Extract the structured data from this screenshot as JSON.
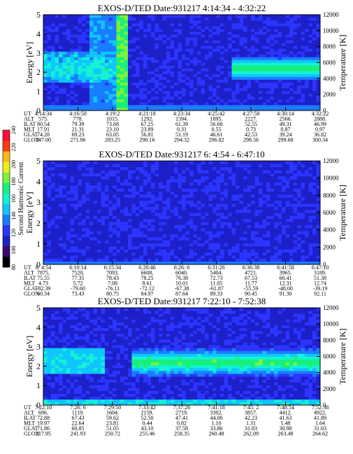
{
  "colors": {
    "bg": "#ffffff",
    "colormap": [
      "#000000",
      "#3b0a6e",
      "#1d20c8",
      "#2b35ff",
      "#1a7cff",
      "#0fc6ff",
      "#13f2d4",
      "#17f07a",
      "#7cf23a",
      "#e6f21a",
      "#ffb818",
      "#ff3b14",
      "#ff0f3a"
    ]
  },
  "colorbar": {
    "label": "Second Harmonic Current",
    "ticks": [
      "240",
      "220",
      "200",
      "180",
      "160",
      "140",
      "120",
      "100",
      "80"
    ]
  },
  "chart_data": [
    {
      "type": "heatmap",
      "title": "EXOS-D/TED   Date:931217  4:14:34 - 4:32:22",
      "ylabel": "Energy [eV]",
      "y2label": "Temperature [K]",
      "ylim": [
        0,
        5
      ],
      "y2lim": [
        0,
        12000
      ],
      "yticks": [
        "0",
        "1",
        "2",
        "3",
        "4",
        "5"
      ],
      "y2ticks": [
        "0",
        "2000",
        "4000",
        "6000",
        "8000",
        "10000",
        "12000"
      ],
      "table_labels": [
        "UT",
        "ALT",
        "ILAT",
        "MLT",
        "GLAT",
        "GLON"
      ],
      "columns": [
        [
          "4:14:34",
          "575.",
          "80.54",
          "17.91",
          "74.28",
          "247.00"
        ],
        [
          "4:16:50",
          "778.",
          "79.39",
          "21.31",
          "69.23",
          "271.06"
        ],
        [
          "4:19:2",
          "1015.",
          "73.68",
          "23.10",
          "63.05",
          "283.25"
        ],
        [
          "4:21:18",
          "1292.",
          "67.25",
          "23.89",
          "56.81",
          "290.16"
        ],
        [
          "4:23:34",
          "1594.",
          "61.39",
          "0.31",
          "51.19",
          "294.32"
        ],
        [
          "4:25:42",
          "1895.",
          "56.68",
          "0.55",
          "46.61",
          "296.82"
        ],
        [
          "4:27:58",
          "2227.",
          "52.55",
          "0.73",
          "42.53",
          "298.56"
        ],
        [
          "4:30:14",
          "2566.",
          "49.31",
          "0.87",
          "39.24",
          "299.68"
        ],
        [
          "4:32:22",
          "2888.",
          "46.99",
          "0.97",
          "36.82",
          "300.34"
        ]
      ]
    },
    {
      "type": "heatmap",
      "title": "EXOS-D/TED   Date:931217  6: 4:54 - 6:47:10",
      "ylabel": "Energy [eV]",
      "y2label": "Temperature [K]",
      "ylim": [
        0,
        5
      ],
      "y2lim": [
        0,
        12000
      ],
      "yticks": [
        "0",
        "1",
        "2",
        "3",
        "4",
        "5"
      ],
      "y2ticks": [
        "0",
        "2000",
        "4000",
        "6000",
        "8000",
        "10000",
        "12000"
      ],
      "table_labels": [
        "UT",
        "ALT",
        "ILAT",
        "MLT",
        "GLAT",
        "GLON"
      ],
      "columns": [
        [
          "6: 4:54",
          "7875.",
          "75.55",
          "4.73",
          "-82.39",
          "60.34"
        ],
        [
          "6:10:14",
          "7520.",
          "77.35",
          "5.72",
          "-79.60",
          "73.43"
        ],
        [
          "6:15:34",
          "7093.",
          "78.43",
          "7.08",
          "-76.11",
          "80.75"
        ],
        [
          "6:20:46",
          "6608.",
          "78.25",
          "8.61",
          "-72.12",
          "84.97"
        ],
        [
          "6:26: 6",
          "6040.",
          "76.38",
          "10.01",
          "-67.38",
          "87.64"
        ],
        [
          "6:31:26",
          "5404.",
          "72.73",
          "11.05",
          "-61.87",
          "89.33"
        ],
        [
          "6:36:38",
          "4721.",
          "67.53",
          "11.77",
          "-55.59",
          "90.45"
        ],
        [
          "6:41:58",
          "3965.",
          "60.41",
          "12.31",
          "-48.00",
          "91.30"
        ],
        [
          "6:47:10",
          "3189.",
          "51.38",
          "12.74",
          "-39.19",
          "92.11"
        ]
      ]
    },
    {
      "type": "heatmap",
      "title": "EXOS-D/TED   Date:931217  7:22:10 - 7:52:38",
      "ylabel": "Energy [eV]",
      "y2label": "Temperature [K]",
      "ylim": [
        0,
        5
      ],
      "y2lim": [
        0,
        12000
      ],
      "yticks": [
        "0",
        "1",
        "2",
        "3",
        "4",
        "5"
      ],
      "y2ticks": [
        "0",
        "2000",
        "4000",
        "6000",
        "8000",
        "10000",
        "12000"
      ],
      "table_labels": [
        "UT",
        "ALT",
        "ILAT",
        "MLT",
        "GLAT",
        "GLON"
      ],
      "columns": [
        [
          "7:22:10",
          "696.",
          "72.88",
          "19.97",
          "71.86",
          "217.95"
        ],
        [
          "7:26: 6",
          "1119.",
          "67.43",
          "22.64",
          "60.85",
          "241.93"
        ],
        [
          "7:29:50",
          "1604.",
          "59.62",
          "23.81",
          "51.05",
          "250.72"
        ],
        [
          "7:33:42",
          "2159.",
          "52.50",
          "0.44",
          "43.10",
          "255.46"
        ],
        [
          "7:37:26",
          "2719.",
          "47.41",
          "0.82",
          "37.58",
          "258.35"
        ],
        [
          "7:41:18",
          "3302.",
          "44.00",
          "1.10",
          "33.86",
          "260.48"
        ],
        [
          "7:45: 2",
          "3857.",
          "42.23",
          "1.31",
          "31.83",
          "262.09"
        ],
        [
          "7:48:54",
          "4412.",
          "41.63",
          "1.48",
          "30.98",
          "263.48"
        ],
        [
          "7:52:38",
          "4922.",
          "41.89",
          "1.64",
          "31.03",
          "264.62"
        ]
      ]
    }
  ]
}
